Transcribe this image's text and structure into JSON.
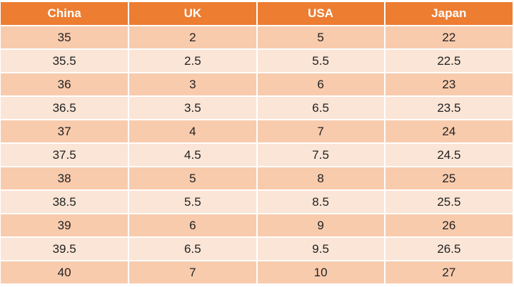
{
  "table": {
    "headers": [
      "China",
      "UK",
      "USA",
      "Japan"
    ],
    "rows": [
      [
        "35",
        "2",
        "5",
        "22"
      ],
      [
        "35.5",
        "2.5",
        "5.5",
        "22.5"
      ],
      [
        "36",
        "3",
        "6",
        "23"
      ],
      [
        "36.5",
        "3.5",
        "6.5",
        "23.5"
      ],
      [
        "37",
        "4",
        "7",
        "24"
      ],
      [
        "37.5",
        "4.5",
        "7.5",
        "24.5"
      ],
      [
        "38",
        "5",
        "8",
        "25"
      ],
      [
        "38.5",
        "5.5",
        "8.5",
        "25.5"
      ],
      [
        "39",
        "6",
        "9",
        "26"
      ],
      [
        "39.5",
        "6.5",
        "9.5",
        "26.5"
      ],
      [
        "40",
        "7",
        "10",
        "27"
      ]
    ]
  },
  "colors": {
    "header_bg": "#ed7d31",
    "row_odd_bg": "#f8cbad",
    "row_even_bg": "#fbe5d6"
  }
}
